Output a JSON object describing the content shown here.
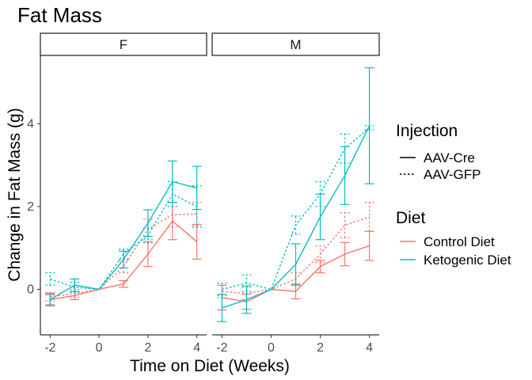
{
  "chart_data": {
    "type": "line",
    "title": "Fat Mass",
    "xlabel": "Time on Diet (Weeks)",
    "ylabel": "Change in Fat Mass (g)",
    "xlim": [
      -2.4,
      4.4
    ],
    "ylim": [
      -1.1,
      5.65
    ],
    "x_ticks": [
      -2,
      0,
      2,
      4
    ],
    "y_ticks": [
      0,
      2,
      4
    ],
    "grid": false,
    "facets": [
      "F",
      "M"
    ],
    "legend": [
      {
        "title": "Injection",
        "items": [
          {
            "label": "AAV-Cre",
            "linetype": "solid"
          },
          {
            "label": "AAV-GFP",
            "linetype": "dotted"
          }
        ]
      },
      {
        "title": "Diet",
        "items": [
          {
            "label": "Control Diet",
            "color": "#F8766D"
          },
          {
            "label": "Ketogenic Diet",
            "color": "#00BFC4"
          }
        ]
      }
    ],
    "series": [
      {
        "facet": "F",
        "diet": "Control Diet",
        "injection": "AAV-Cre",
        "x": [
          -2,
          -1,
          0,
          1,
          2,
          3,
          4
        ],
        "y": [
          -0.25,
          -0.15,
          0.0,
          0.13,
          0.85,
          1.65,
          1.15
        ],
        "err": [
          0.12,
          0.1,
          0.0,
          0.08,
          0.3,
          0.45,
          0.42
        ]
      },
      {
        "facet": "F",
        "diet": "Control Diet",
        "injection": "AAV-GFP",
        "x": [
          -2,
          -1,
          0,
          1,
          2,
          3,
          4
        ],
        "y": [
          -0.18,
          -0.1,
          0.0,
          0.55,
          1.45,
          1.8,
          1.82
        ],
        "err": [
          0.1,
          0.1,
          0.0,
          0.15,
          0.25,
          0.3,
          0.28
        ]
      },
      {
        "facet": "F",
        "diet": "Ketogenic Diet",
        "injection": "AAV-Cre",
        "x": [
          -2,
          -1,
          0,
          1,
          2,
          3,
          4
        ],
        "y": [
          -0.25,
          0.1,
          0.0,
          0.72,
          1.6,
          2.6,
          2.45
        ],
        "err": [
          0.15,
          0.15,
          0.0,
          0.2,
          0.32,
          0.5,
          0.52
        ]
      },
      {
        "facet": "F",
        "diet": "Ketogenic Diet",
        "injection": "AAV-GFP",
        "x": [
          -2,
          -1,
          0,
          1,
          2,
          3,
          4
        ],
        "y": [
          0.25,
          0.05,
          0.0,
          0.85,
          1.3,
          2.3,
          2.0
        ],
        "err": [
          0.15,
          0.12,
          0.0,
          0.12,
          0.18,
          0.3,
          0.5
        ]
      },
      {
        "facet": "M",
        "diet": "Control Diet",
        "injection": "AAV-Cre",
        "x": [
          -2,
          -1,
          0,
          1,
          2,
          3,
          4
        ],
        "y": [
          -0.2,
          -0.3,
          0.0,
          -0.05,
          0.55,
          0.85,
          1.05
        ],
        "err": [
          0.3,
          0.18,
          0.0,
          0.18,
          0.15,
          0.28,
          0.35
        ]
      },
      {
        "facet": "M",
        "diet": "Control Diet",
        "injection": "AAV-GFP",
        "x": [
          -2,
          -1,
          0,
          1,
          2,
          3,
          4
        ],
        "y": [
          -0.05,
          -0.1,
          0.0,
          0.25,
          0.85,
          1.55,
          1.75
        ],
        "err": [
          0.15,
          0.15,
          0.0,
          0.15,
          0.2,
          0.3,
          0.35
        ]
      },
      {
        "facet": "M",
        "diet": "Ketogenic Diet",
        "injection": "AAV-Cre",
        "x": [
          -2,
          -1,
          0,
          1,
          2,
          3,
          4
        ],
        "y": [
          -0.45,
          -0.25,
          0.0,
          0.6,
          1.75,
          2.75,
          3.95
        ],
        "err": [
          0.33,
          0.33,
          0.0,
          0.5,
          0.55,
          0.7,
          1.4
        ]
      },
      {
        "facet": "M",
        "diet": "Ketogenic Diet",
        "injection": "AAV-GFP",
        "x": [
          -2,
          -1,
          0,
          1,
          2,
          3,
          4
        ],
        "y": [
          0.0,
          0.15,
          0.0,
          1.55,
          2.3,
          3.4,
          3.9
        ],
        "err": [
          0.15,
          0.2,
          0.0,
          0.22,
          0.3,
          0.35,
          0.05
        ]
      }
    ]
  }
}
